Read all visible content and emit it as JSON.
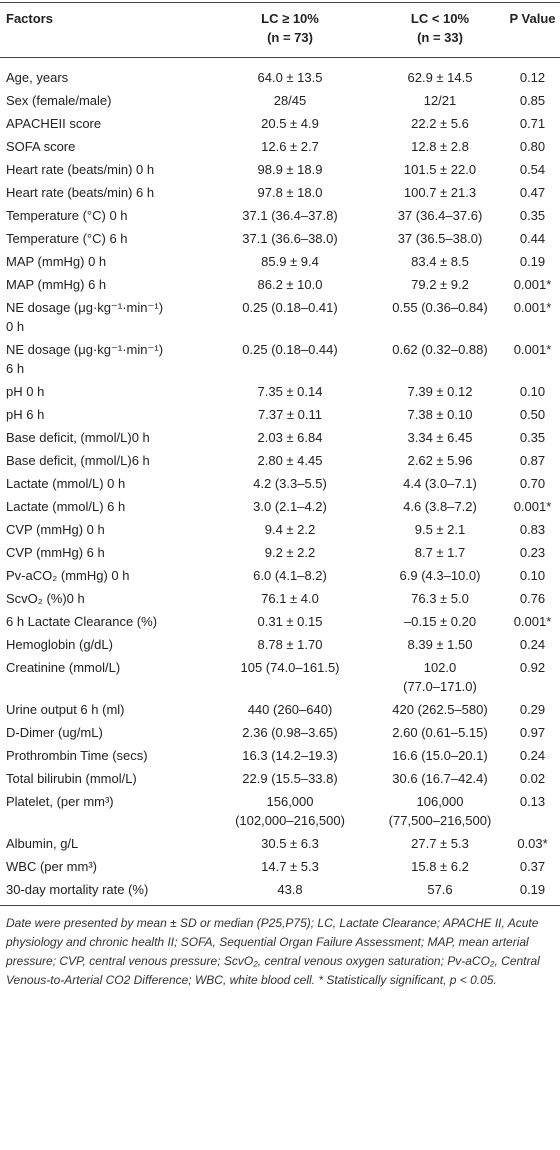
{
  "table": {
    "header": [
      "Factors",
      "LC ≥ 10%\n(n = 73)",
      "LC < 10%\n(n = 33)",
      "P Value"
    ],
    "rows": [
      [
        "Age, years",
        "64.0 ± 13.5",
        "62.9 ± 14.5",
        "0.12"
      ],
      [
        "Sex (female/male)",
        "28/45",
        "12/21",
        "0.85"
      ],
      [
        "APACHEII score",
        "20.5 ± 4.9",
        "22.2 ± 5.6",
        "0.71"
      ],
      [
        "SOFA score",
        "12.6 ± 2.7",
        "12.8 ± 2.8",
        "0.80"
      ],
      [
        "Heart rate (beats/min) 0 h",
        "98.9 ± 18.9",
        "101.5 ± 22.0",
        "0.54"
      ],
      [
        "Heart rate (beats/min) 6 h",
        "97.8 ± 18.0",
        "100.7 ± 21.3",
        "0.47"
      ],
      [
        "Temperature (°C) 0 h",
        "37.1 (36.4–37.8)",
        "37 (36.4–37.6)",
        "0.35"
      ],
      [
        "Temperature (°C) 6 h",
        "37.1 (36.6–38.0)",
        "37 (36.5–38.0)",
        "0.44"
      ],
      [
        "MAP (mmHg) 0 h",
        "85.9 ± 9.4",
        "83.4 ± 8.5",
        "0.19"
      ],
      [
        "MAP (mmHg) 6 h",
        "86.2 ± 10.0",
        "79.2 ± 9.2",
        "0.001*"
      ],
      [
        "NE dosage (μg·kg⁻¹·min⁻¹)\n0 h",
        "0.25 (0.18–0.41)",
        "0.55 (0.36–0.84)",
        "0.001*"
      ],
      [
        "NE dosage (μg·kg⁻¹·min⁻¹)\n6 h",
        "0.25 (0.18–0.44)",
        "0.62 (0.32–0.88)",
        "0.001*"
      ],
      [
        "pH 0 h",
        "7.35 ± 0.14",
        "7.39 ± 0.12",
        "0.10"
      ],
      [
        "pH 6 h",
        "7.37 ± 0.11",
        "7.38 ± 0.10",
        "0.50"
      ],
      [
        "Base deficit, (mmol/L)0 h",
        "2.03 ± 6.84",
        "3.34 ± 6.45",
        "0.35"
      ],
      [
        "Base deficit, (mmol/L)6 h",
        "2.80 ± 4.45",
        "2.62 ± 5.96",
        "0.87"
      ],
      [
        "Lactate (mmol/L) 0 h",
        "4.2 (3.3–5.5)",
        "4.4 (3.0–7.1)",
        "0.70"
      ],
      [
        "Lactate (mmol/L) 6 h",
        "3.0 (2.1–4.2)",
        "4.6 (3.8–7.2)",
        "0.001*"
      ],
      [
        "CVP (mmHg) 0 h",
        "9.4 ± 2.2",
        "9.5 ± 2.1",
        "0.83"
      ],
      [
        "CVP (mmHg) 6 h",
        "9.2 ± 2.2",
        "8.7 ± 1.7",
        "0.23"
      ],
      [
        "Pv-aCO₂ (mmHg) 0 h",
        "6.0 (4.1–8.2)",
        "6.9 (4.3–10.0)",
        "0.10"
      ],
      [
        "ScvO₂ (%)0 h",
        "76.1 ± 4.0",
        "76.3 ± 5.0",
        "0.76"
      ],
      [
        "6 h Lactate Clearance (%)",
        "0.31 ± 0.15",
        "–0.15 ± 0.20",
        "0.001*"
      ],
      [
        "Hemoglobin (g/dL)",
        "8.78 ± 1.70",
        "8.39 ± 1.50",
        "0.24"
      ],
      [
        "Creatinine (mmol/L)",
        "105 (74.0–161.5)",
        "102.0\n(77.0–171.0)",
        "0.92"
      ],
      [
        "Urine output 6 h (ml)",
        "440 (260–640)",
        "420 (262.5–580)",
        "0.29"
      ],
      [
        "D-Dimer (ug/mL)",
        "2.36 (0.98–3.65)",
        "2.60 (0.61–5.15)",
        "0.97"
      ],
      [
        "Prothrombin Time (secs)",
        "16.3 (14.2–19.3)",
        "16.6 (15.0–20.1)",
        "0.24"
      ],
      [
        "Total bilirubin (mmol/L)",
        "22.9 (15.5–33.8)",
        "30.6 (16.7–42.4)",
        "0.02"
      ],
      [
        "Platelet, (per mm³)",
        "156,000\n(102,000–216,500)",
        "106,000\n(77,500–216,500)",
        "0.13"
      ],
      [
        "Albumin, g/L",
        "30.5 ± 6.3",
        "27.7 ± 5.3",
        "0.03*"
      ],
      [
        "WBC (per mm³)",
        "14.7 ± 5.3",
        "15.8 ± 6.2",
        "0.37"
      ],
      [
        "30-day mortality rate (%)",
        "43.8",
        "57.6",
        "0.19"
      ]
    ],
    "footnote": "Date were presented by mean ± SD or median (P25,P75); LC, Lactate Clearance; APACHE II, Acute physiology and chronic health II; SOFA, Sequential Organ Failure Assessment; MAP, mean arterial pressure; CVP, central venous pressure; ScvO₂, central venous oxygen saturation; Pv-aCO₂, Central Venous-to-Arterial CO2 Difference; WBC, white blood cell. * Statistically significant, p < 0.05."
  }
}
